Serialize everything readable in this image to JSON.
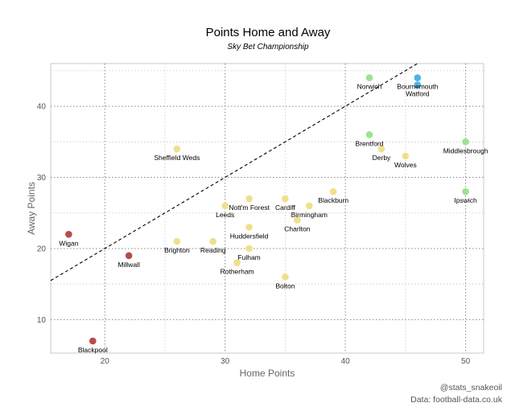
{
  "chart_data": {
    "type": "scatter",
    "title": "Points Home and Away",
    "subtitle": "Sky Bet Championship",
    "xlabel": "Home Points",
    "ylabel": "Away Points",
    "xlim": [
      15.5,
      51.5
    ],
    "ylim": [
      5.3,
      46.0
    ],
    "xticks": [
      20,
      30,
      40,
      50
    ],
    "yticks": [
      10,
      20,
      30,
      40
    ],
    "grid": true,
    "reference_line": "y = x",
    "colors": {
      "top": "#4fb3e8",
      "playoff": "#9be38f",
      "mid": "#f0e08a",
      "relegation": "#b84c4c"
    },
    "points": [
      {
        "label": "Norwich",
        "x": 42,
        "y": 44,
        "group": "playoff"
      },
      {
        "label": "Bournemouth",
        "x": 46,
        "y": 44,
        "group": "top"
      },
      {
        "label": "Watford",
        "x": 46,
        "y": 43,
        "group": "top"
      },
      {
        "label": "Brentford",
        "x": 42,
        "y": 36,
        "group": "playoff"
      },
      {
        "label": "Derby",
        "x": 43,
        "y": 34,
        "group": "mid"
      },
      {
        "label": "Wolves",
        "x": 45,
        "y": 33,
        "group": "mid"
      },
      {
        "label": "Middlesbrough",
        "x": 50,
        "y": 35,
        "group": "playoff"
      },
      {
        "label": "Ipswich",
        "x": 50,
        "y": 28,
        "group": "playoff"
      },
      {
        "label": "Sheffield Weds",
        "x": 26,
        "y": 34,
        "group": "mid"
      },
      {
        "label": "Blackburn",
        "x": 39,
        "y": 28,
        "group": "mid"
      },
      {
        "label": "Cardiff",
        "x": 35,
        "y": 27,
        "group": "mid"
      },
      {
        "label": "Nott'm Forest",
        "x": 32,
        "y": 27,
        "group": "mid"
      },
      {
        "label": "Leeds",
        "x": 30,
        "y": 26,
        "group": "mid"
      },
      {
        "label": "Birmingham",
        "x": 37,
        "y": 26,
        "group": "mid"
      },
      {
        "label": "Charlton",
        "x": 36,
        "y": 24,
        "group": "mid"
      },
      {
        "label": "Huddersfield",
        "x": 32,
        "y": 23,
        "group": "mid"
      },
      {
        "label": "Brighton",
        "x": 26,
        "y": 21,
        "group": "mid"
      },
      {
        "label": "Reading",
        "x": 29,
        "y": 21,
        "group": "mid"
      },
      {
        "label": "Fulham",
        "x": 32,
        "y": 20,
        "group": "mid"
      },
      {
        "label": "Rotherham",
        "x": 31,
        "y": 18,
        "group": "mid"
      },
      {
        "label": "Bolton",
        "x": 35,
        "y": 16,
        "group": "mid"
      },
      {
        "label": "Wigan",
        "x": 17,
        "y": 22,
        "group": "relegation"
      },
      {
        "label": "Millwall",
        "x": 22,
        "y": 19,
        "group": "relegation"
      },
      {
        "label": "Blackpool",
        "x": 19,
        "y": 7,
        "group": "relegation"
      }
    ]
  },
  "captions": {
    "handle": "@stats_snakeoil",
    "source": "Data: football-data.co.uk"
  }
}
